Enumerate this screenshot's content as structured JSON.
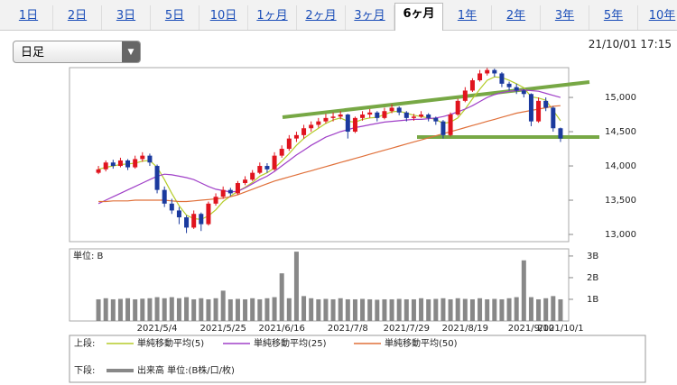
{
  "tabs": [
    {
      "label": "1日"
    },
    {
      "label": "2日"
    },
    {
      "label": "3日"
    },
    {
      "label": "5日"
    },
    {
      "label": "10日"
    },
    {
      "label": "1ヶ月"
    },
    {
      "label": "2ヶ月"
    },
    {
      "label": "3ヶ月"
    },
    {
      "label": "6ヶ月",
      "selected": true
    },
    {
      "label": "1年"
    },
    {
      "label": "2年"
    },
    {
      "label": "3年"
    },
    {
      "label": "5年"
    },
    {
      "label": "10年"
    }
  ],
  "dropdown": "日足",
  "timestamp": "21/10/01 17:15",
  "chart_data": [
    {
      "type": "candlestick",
      "up_color": "#e0141e",
      "down_color": "#1b3a9e",
      "categories": [
        null,
        null,
        null,
        null,
        null,
        null,
        null,
        null,
        "2021/5/4",
        null,
        null,
        null,
        null,
        null,
        null,
        null,
        null,
        "2021/5/25",
        null,
        null,
        null,
        null,
        null,
        null,
        null,
        "2021/6/16",
        null,
        null,
        null,
        null,
        null,
        null,
        null,
        null,
        "2021/7/8",
        null,
        null,
        null,
        null,
        null,
        null,
        null,
        "2021/7/29",
        null,
        null,
        null,
        null,
        null,
        null,
        null,
        "2021/8/19",
        null,
        null,
        null,
        null,
        null,
        null,
        null,
        null,
        "2021/9/10",
        null,
        null,
        null,
        "2021/10/1"
      ],
      "ohlc": [
        [
          13900,
          14000,
          13880,
          13950
        ],
        [
          13950,
          14080,
          13920,
          14050
        ],
        [
          14050,
          14090,
          13960,
          14000
        ],
        [
          14000,
          14120,
          13980,
          14080
        ],
        [
          14080,
          14100,
          13940,
          13980
        ],
        [
          13980,
          14150,
          13960,
          14100
        ],
        [
          14100,
          14200,
          14060,
          14150
        ],
        [
          14150,
          14180,
          14000,
          14050
        ],
        [
          14000,
          14020,
          13600,
          13650
        ],
        [
          13650,
          13700,
          13400,
          13450
        ],
        [
          13450,
          13520,
          13300,
          13350
        ],
        [
          13350,
          13400,
          13150,
          13250
        ],
        [
          13250,
          13280,
          13020,
          13100
        ],
        [
          13100,
          13350,
          13080,
          13300
        ],
        [
          13300,
          13320,
          13050,
          13150
        ],
        [
          13150,
          13480,
          13130,
          13450
        ],
        [
          13450,
          13600,
          13420,
          13550
        ],
        [
          13550,
          13700,
          13520,
          13650
        ],
        [
          13650,
          13680,
          13560,
          13600
        ],
        [
          13600,
          13780,
          13580,
          13750
        ],
        [
          13750,
          13850,
          13720,
          13800
        ],
        [
          13800,
          13940,
          13780,
          13900
        ],
        [
          13900,
          14050,
          13880,
          14000
        ],
        [
          14000,
          14040,
          13900,
          13950
        ],
        [
          13950,
          14200,
          13930,
          14150
        ],
        [
          14150,
          14300,
          14120,
          14250
        ],
        [
          14250,
          14450,
          14220,
          14400
        ],
        [
          14400,
          14500,
          14350,
          14450
        ],
        [
          14450,
          14600,
          14400,
          14550
        ],
        [
          14550,
          14650,
          14500,
          14600
        ],
        [
          14600,
          14700,
          14560,
          14650
        ],
        [
          14650,
          14760,
          14620,
          14700
        ],
        [
          14700,
          14780,
          14650,
          14720
        ],
        [
          14720,
          14800,
          14680,
          14750
        ],
        [
          14750,
          14760,
          14400,
          14500
        ],
        [
          14500,
          14720,
          14480,
          14700
        ],
        [
          14700,
          14800,
          14660,
          14750
        ],
        [
          14750,
          14830,
          14700,
          14780
        ],
        [
          14780,
          14800,
          14650,
          14700
        ],
        [
          14700,
          14850,
          14680,
          14800
        ],
        [
          14800,
          14900,
          14770,
          14850
        ],
        [
          14850,
          14870,
          14740,
          14780
        ],
        [
          14780,
          14800,
          14650,
          14700
        ],
        [
          14700,
          14760,
          14660,
          14720
        ],
        [
          14720,
          14800,
          14700,
          14750
        ],
        [
          14750,
          14770,
          14650,
          14700
        ],
        [
          14700,
          14720,
          14600,
          14650
        ],
        [
          14650,
          14670,
          14400,
          14450
        ],
        [
          14450,
          14780,
          14430,
          14750
        ],
        [
          14750,
          14980,
          14730,
          14950
        ],
        [
          14950,
          15150,
          14930,
          15100
        ],
        [
          15100,
          15280,
          15080,
          15250
        ],
        [
          15250,
          15400,
          15230,
          15350
        ],
        [
          15350,
          15430,
          15320,
          15400
        ],
        [
          15400,
          15420,
          15300,
          15350
        ],
        [
          15350,
          15370,
          15150,
          15200
        ],
        [
          15200,
          15230,
          15100,
          15150
        ],
        [
          15150,
          15200,
          15050,
          15100
        ],
        [
          15100,
          15120,
          15000,
          15050
        ],
        [
          15050,
          15060,
          14580,
          14650
        ],
        [
          14650,
          15000,
          14630,
          14950
        ],
        [
          14950,
          15000,
          14800,
          14850
        ],
        [
          14850,
          14870,
          14500,
          14550
        ],
        [
          14550,
          14560,
          14350,
          14400
        ]
      ],
      "series": [
        {
          "name": "単純移動平均(5)",
          "color": "#b5cc2a",
          "values": [
            13950,
            13980,
            14000,
            14020,
            14030,
            14040,
            14070,
            14080,
            13980,
            13800,
            13600,
            13420,
            13280,
            13230,
            13220,
            13270,
            13360,
            13480,
            13560,
            13630,
            13690,
            13760,
            13850,
            13900,
            13970,
            14070,
            14180,
            14300,
            14400,
            14480,
            14550,
            14620,
            14670,
            14700,
            14650,
            14640,
            14680,
            14700,
            14710,
            14750,
            14790,
            14800,
            14770,
            14740,
            14720,
            14700,
            14680,
            14620,
            14640,
            14700,
            14830,
            14980,
            15120,
            15250,
            15300,
            15290,
            15250,
            15200,
            15140,
            15010,
            14990,
            14960,
            14810,
            14660
          ]
        },
        {
          "name": "単純移動平均(25)",
          "color": "#a040c8",
          "values": [
            13450,
            13500,
            13550,
            13600,
            13650,
            13700,
            13750,
            13800,
            13850,
            13880,
            13870,
            13850,
            13830,
            13800,
            13750,
            13700,
            13660,
            13640,
            13620,
            13630,
            13680,
            13740,
            13800,
            13850,
            13920,
            14000,
            14080,
            14160,
            14230,
            14300,
            14360,
            14420,
            14460,
            14500,
            14530,
            14560,
            14580,
            14600,
            14620,
            14640,
            14650,
            14660,
            14670,
            14680,
            14680,
            14690,
            14700,
            14720,
            14750,
            14790,
            14830,
            14880,
            14940,
            15000,
            15040,
            15070,
            15090,
            15100,
            15110,
            15100,
            15090,
            15060,
            15030,
            15000
          ]
        },
        {
          "name": "単純移動平均(50)",
          "color": "#e0703a",
          "values": [
            13480,
            13480,
            13490,
            13490,
            13490,
            13500,
            13500,
            13500,
            13500,
            13500,
            13490,
            13480,
            13480,
            13490,
            13500,
            13510,
            13520,
            13530,
            13550,
            13580,
            13620,
            13660,
            13700,
            13740,
            13780,
            13810,
            13840,
            13870,
            13900,
            13930,
            13960,
            13990,
            14020,
            14050,
            14080,
            14110,
            14140,
            14170,
            14200,
            14230,
            14260,
            14290,
            14320,
            14350,
            14380,
            14410,
            14440,
            14470,
            14500,
            14530,
            14560,
            14590,
            14620,
            14650,
            14680,
            14710,
            14740,
            14770,
            14790,
            14810,
            14830,
            14850,
            14870,
            14880
          ]
        }
      ],
      "ylim": [
        12895,
        15435
      ],
      "yticks": [
        {
          "value": 13000,
          "label": "13,000"
        },
        {
          "value": 13500,
          "label": "13,500"
        },
        {
          "value": 14000,
          "label": "14,000"
        },
        {
          "value": 14500,
          "label": "14,500"
        },
        {
          "value": 15000,
          "label": "15,000"
        }
      ],
      "legend_label": "上段:"
    },
    {
      "type": "bar",
      "unit_label": "単位: B",
      "legend_label": "下段:",
      "series": [
        {
          "name": "出来高 単位:(B株/口/枚)",
          "color": "#888888",
          "values": [
            1.0,
            1.05,
            1.0,
            1.02,
            1.05,
            1.0,
            1.03,
            1.05,
            1.1,
            1.05,
            1.1,
            1.05,
            1.1,
            1.0,
            1.05,
            1.0,
            1.05,
            1.4,
            1.0,
            1.02,
            1.0,
            1.05,
            1.0,
            1.05,
            1.1,
            2.2,
            1.05,
            3.2,
            1.15,
            1.05,
            1.0,
            1.02,
            1.0,
            1.05,
            1.0,
            1.0,
            1.02,
            1.0,
            0.98,
            1.0,
            1.0,
            1.02,
            1.0,
            1.0,
            1.05,
            1.0,
            1.02,
            1.05,
            1.0,
            1.05,
            1.02,
            1.0,
            1.05,
            1.0,
            1.02,
            1.0,
            1.05,
            1.1,
            2.8,
            1.1,
            1.0,
            1.05,
            1.15,
            1.0
          ]
        }
      ],
      "ylim": [
        0,
        3.33
      ],
      "yticks": [
        {
          "value": 1,
          "label": "1B"
        },
        {
          "value": 2,
          "label": "2B"
        },
        {
          "value": 3,
          "label": "3B"
        }
      ]
    }
  ]
}
